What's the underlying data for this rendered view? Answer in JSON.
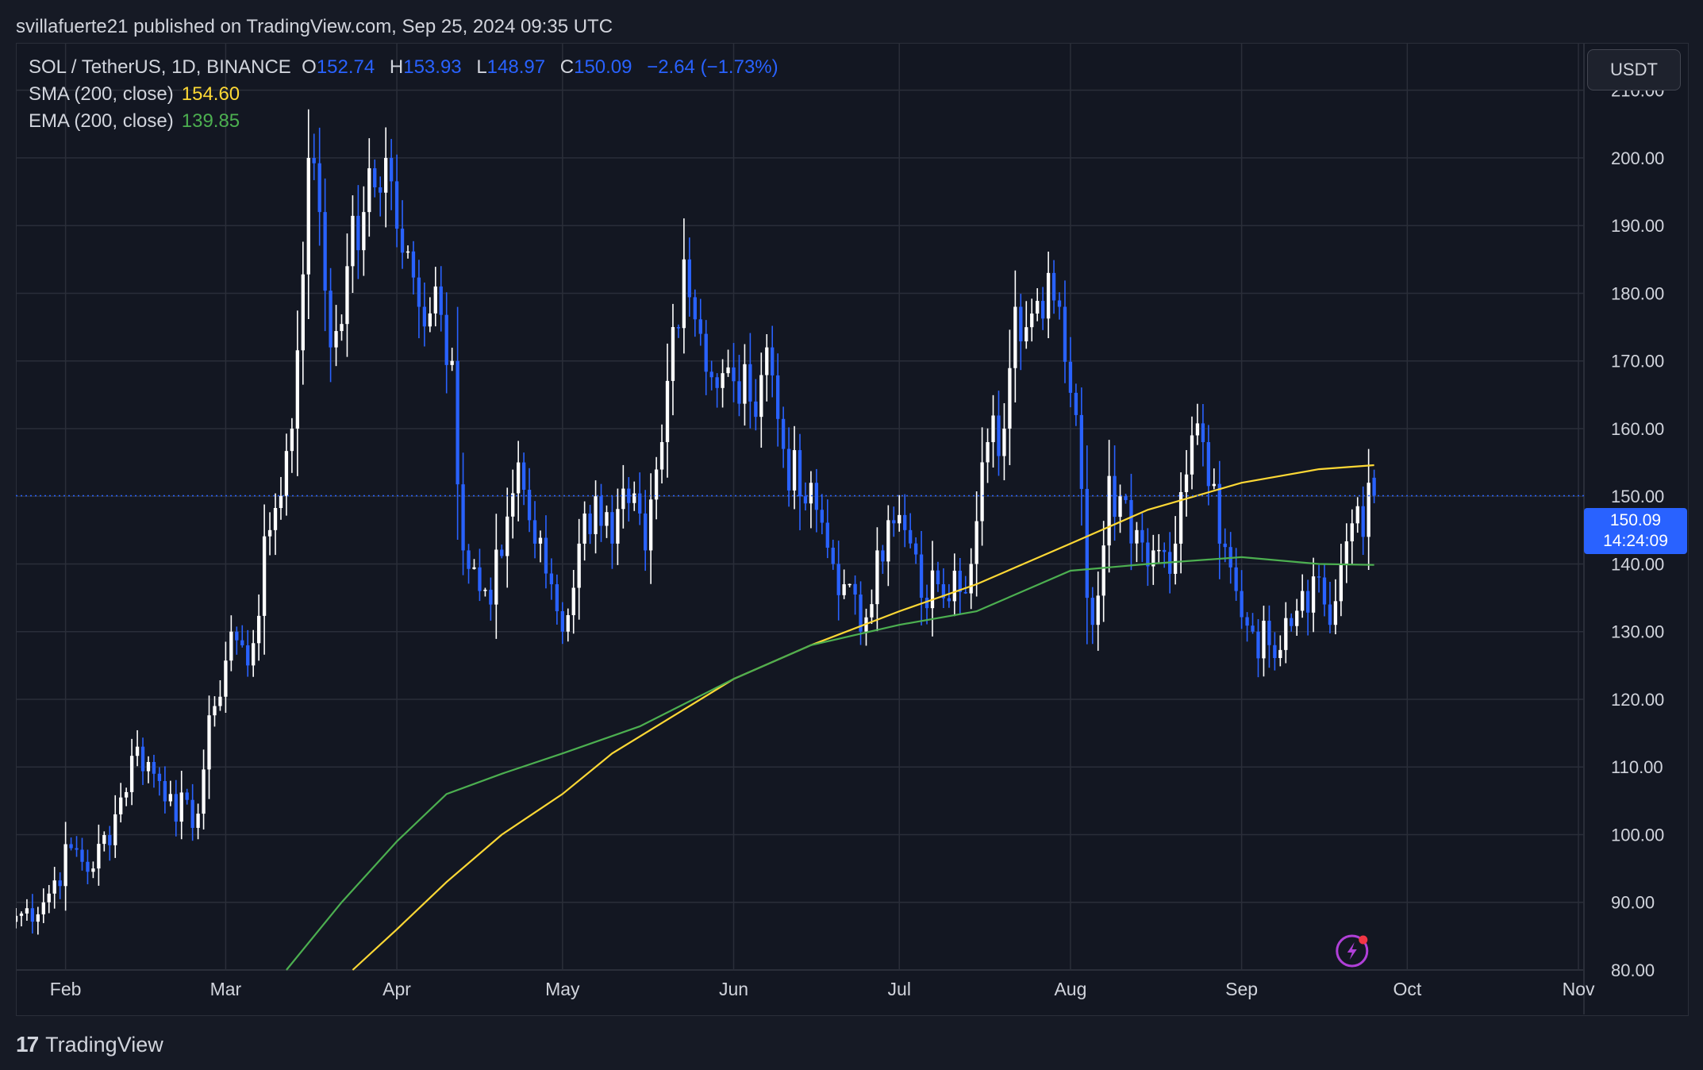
{
  "header": {
    "publisher_line": "svillafuerte21 published on TradingView.com, Sep 25, 2024 09:35 UTC"
  },
  "legend": {
    "symbol": "SOL / TetherUS, 1D, BINANCE",
    "open_label": "O",
    "open": "152.74",
    "high_label": "H",
    "high": "153.93",
    "low_label": "L",
    "low": "148.97",
    "close_label": "C",
    "close": "150.09",
    "change": "−2.64 (−1.73%)",
    "sma_label": "SMA (200, close)",
    "sma_value": "154.60",
    "ema_label": "EMA (200, close)",
    "ema_value": "139.85"
  },
  "currency_button": "USDT",
  "price_tag": {
    "price": "150.09",
    "countdown": "14:24:09"
  },
  "footer": {
    "brand_mark": "17",
    "brand_name": "TradingView"
  },
  "colors": {
    "up": "#ffffff",
    "down": "#2962ff",
    "sma": "#fdd835",
    "ema": "#4caf50",
    "grid": "#2a2e39",
    "background": "#131722",
    "last_price_line": "#2962ff"
  },
  "icons": [
    "lightning-icon",
    "tradingview-logo-icon"
  ],
  "chart_data": {
    "type": "candlestick",
    "symbol": "SOL / TetherUS",
    "timeframe": "1D",
    "ylim": [
      80,
      217
    ],
    "yticks": [
      "80.00",
      "90.00",
      "100.00",
      "110.00",
      "120.00",
      "130.00",
      "140.00",
      "150.00",
      "160.00",
      "170.00",
      "180.00",
      "190.00",
      "200.00",
      "210.00"
    ],
    "xlim": [
      "2024-01-23",
      "2024-11-02"
    ],
    "xticks": [
      {
        "date": "2024-02-01",
        "label": "Feb"
      },
      {
        "date": "2024-03-01",
        "label": "Mar"
      },
      {
        "date": "2024-04-01",
        "label": "Apr"
      },
      {
        "date": "2024-05-01",
        "label": "May"
      },
      {
        "date": "2024-06-01",
        "label": "Jun"
      },
      {
        "date": "2024-07-01",
        "label": "Jul"
      },
      {
        "date": "2024-08-01",
        "label": "Aug"
      },
      {
        "date": "2024-09-01",
        "label": "Sep"
      },
      {
        "date": "2024-10-01",
        "label": "Oct"
      },
      {
        "date": "2024-11-01",
        "label": "Nov"
      }
    ],
    "last_price": 150.09,
    "last_date": "2024-09-25",
    "sma_last": 154.6,
    "ema_last": 139.85,
    "closes": [
      {
        "date": "2024-01-23",
        "close": 88
      },
      {
        "date": "2024-01-28",
        "close": 90
      },
      {
        "date": "2024-02-02",
        "close": 98
      },
      {
        "date": "2024-02-06",
        "close": 95
      },
      {
        "date": "2024-02-10",
        "close": 103
      },
      {
        "date": "2024-02-14",
        "close": 113
      },
      {
        "date": "2024-02-17",
        "close": 109
      },
      {
        "date": "2024-02-20",
        "close": 106
      },
      {
        "date": "2024-02-24",
        "close": 101
      },
      {
        "date": "2024-02-28",
        "close": 119
      },
      {
        "date": "2024-03-02",
        "close": 130
      },
      {
        "date": "2024-03-05",
        "close": 125
      },
      {
        "date": "2024-03-09",
        "close": 145
      },
      {
        "date": "2024-03-13",
        "close": 160
      },
      {
        "date": "2024-03-16",
        "close": 200
      },
      {
        "date": "2024-03-18",
        "close": 192
      },
      {
        "date": "2024-03-20",
        "close": 172
      },
      {
        "date": "2024-03-23",
        "close": 184
      },
      {
        "date": "2024-03-26",
        "close": 192
      },
      {
        "date": "2024-03-30",
        "close": 200
      },
      {
        "date": "2024-04-02",
        "close": 186
      },
      {
        "date": "2024-04-05",
        "close": 178
      },
      {
        "date": "2024-04-08",
        "close": 181
      },
      {
        "date": "2024-04-11",
        "close": 170
      },
      {
        "date": "2024-04-13",
        "close": 142
      },
      {
        "date": "2024-04-16",
        "close": 136
      },
      {
        "date": "2024-04-18",
        "close": 134
      },
      {
        "date": "2024-04-21",
        "close": 147
      },
      {
        "date": "2024-04-23",
        "close": 155
      },
      {
        "date": "2024-04-26",
        "close": 143
      },
      {
        "date": "2024-04-29",
        "close": 137
      },
      {
        "date": "2024-05-01",
        "close": 130
      },
      {
        "date": "2024-05-04",
        "close": 143
      },
      {
        "date": "2024-05-07",
        "close": 150
      },
      {
        "date": "2024-05-10",
        "close": 143
      },
      {
        "date": "2024-05-13",
        "close": 149
      },
      {
        "date": "2024-05-16",
        "close": 142
      },
      {
        "date": "2024-05-19",
        "close": 158
      },
      {
        "date": "2024-05-21",
        "close": 175
      },
      {
        "date": "2024-05-23",
        "close": 185
      },
      {
        "date": "2024-05-26",
        "close": 174
      },
      {
        "date": "2024-05-29",
        "close": 166
      },
      {
        "date": "2024-06-01",
        "close": 167
      },
      {
        "date": "2024-06-04",
        "close": 164
      },
      {
        "date": "2024-06-07",
        "close": 172
      },
      {
        "date": "2024-06-10",
        "close": 157
      },
      {
        "date": "2024-06-13",
        "close": 150
      },
      {
        "date": "2024-06-16",
        "close": 148
      },
      {
        "date": "2024-06-19",
        "close": 140
      },
      {
        "date": "2024-06-21",
        "close": 137
      },
      {
        "date": "2024-06-24",
        "close": 130
      },
      {
        "date": "2024-06-27",
        "close": 142
      },
      {
        "date": "2024-06-30",
        "close": 146
      },
      {
        "date": "2024-07-02",
        "close": 145
      },
      {
        "date": "2024-07-05",
        "close": 135
      },
      {
        "date": "2024-07-08",
        "close": 137
      },
      {
        "date": "2024-07-11",
        "close": 139
      },
      {
        "date": "2024-07-14",
        "close": 140
      },
      {
        "date": "2024-07-17",
        "close": 158
      },
      {
        "date": "2024-07-20",
        "close": 160
      },
      {
        "date": "2024-07-22",
        "close": 178
      },
      {
        "date": "2024-07-25",
        "close": 177
      },
      {
        "date": "2024-07-28",
        "close": 183
      },
      {
        "date": "2024-07-30",
        "close": 178
      },
      {
        "date": "2024-08-02",
        "close": 162
      },
      {
        "date": "2024-08-04",
        "close": 135
      },
      {
        "date": "2024-08-05",
        "close": 131
      },
      {
        "date": "2024-08-08",
        "close": 153
      },
      {
        "date": "2024-08-10",
        "close": 150
      },
      {
        "date": "2024-08-13",
        "close": 145
      },
      {
        "date": "2024-08-16",
        "close": 142
      },
      {
        "date": "2024-08-20",
        "close": 143
      },
      {
        "date": "2024-08-23",
        "close": 159
      },
      {
        "date": "2024-08-25",
        "close": 158
      },
      {
        "date": "2024-08-28",
        "close": 143
      },
      {
        "date": "2024-08-31",
        "close": 136
      },
      {
        "date": "2024-09-03",
        "close": 130
      },
      {
        "date": "2024-09-06",
        "close": 128
      },
      {
        "date": "2024-09-09",
        "close": 132
      },
      {
        "date": "2024-09-12",
        "close": 136
      },
      {
        "date": "2024-09-15",
        "close": 138
      },
      {
        "date": "2024-09-17",
        "close": 131
      },
      {
        "date": "2024-09-19",
        "close": 140
      },
      {
        "date": "2024-09-21",
        "close": 146
      },
      {
        "date": "2024-09-23",
        "close": 144
      },
      {
        "date": "2024-09-24",
        "close": 152
      },
      {
        "date": "2024-09-25",
        "close": 150.09
      }
    ],
    "series": [
      {
        "name": "SMA (200, close)",
        "points": [
          {
            "date": "2024-03-24",
            "value": 80
          },
          {
            "date": "2024-04-01",
            "value": 86
          },
          {
            "date": "2024-04-10",
            "value": 93
          },
          {
            "date": "2024-04-20",
            "value": 100
          },
          {
            "date": "2024-05-01",
            "value": 106
          },
          {
            "date": "2024-05-10",
            "value": 112
          },
          {
            "date": "2024-05-20",
            "value": 117
          },
          {
            "date": "2024-06-01",
            "value": 123
          },
          {
            "date": "2024-06-15",
            "value": 128
          },
          {
            "date": "2024-07-01",
            "value": 133
          },
          {
            "date": "2024-07-15",
            "value": 137
          },
          {
            "date": "2024-08-01",
            "value": 143
          },
          {
            "date": "2024-08-15",
            "value": 148
          },
          {
            "date": "2024-09-01",
            "value": 152
          },
          {
            "date": "2024-09-15",
            "value": 154
          },
          {
            "date": "2024-09-25",
            "value": 154.6
          }
        ]
      },
      {
        "name": "EMA (200, close)",
        "points": [
          {
            "date": "2024-03-12",
            "value": 80
          },
          {
            "date": "2024-03-22",
            "value": 90
          },
          {
            "date": "2024-04-01",
            "value": 99
          },
          {
            "date": "2024-04-10",
            "value": 106
          },
          {
            "date": "2024-04-20",
            "value": 109
          },
          {
            "date": "2024-05-01",
            "value": 112
          },
          {
            "date": "2024-05-15",
            "value": 116
          },
          {
            "date": "2024-06-01",
            "value": 123
          },
          {
            "date": "2024-06-15",
            "value": 128
          },
          {
            "date": "2024-07-01",
            "value": 131
          },
          {
            "date": "2024-07-15",
            "value": 133
          },
          {
            "date": "2024-08-01",
            "value": 139
          },
          {
            "date": "2024-08-15",
            "value": 140
          },
          {
            "date": "2024-09-01",
            "value": 141
          },
          {
            "date": "2024-09-15",
            "value": 140
          },
          {
            "date": "2024-09-25",
            "value": 139.85
          }
        ]
      }
    ]
  }
}
